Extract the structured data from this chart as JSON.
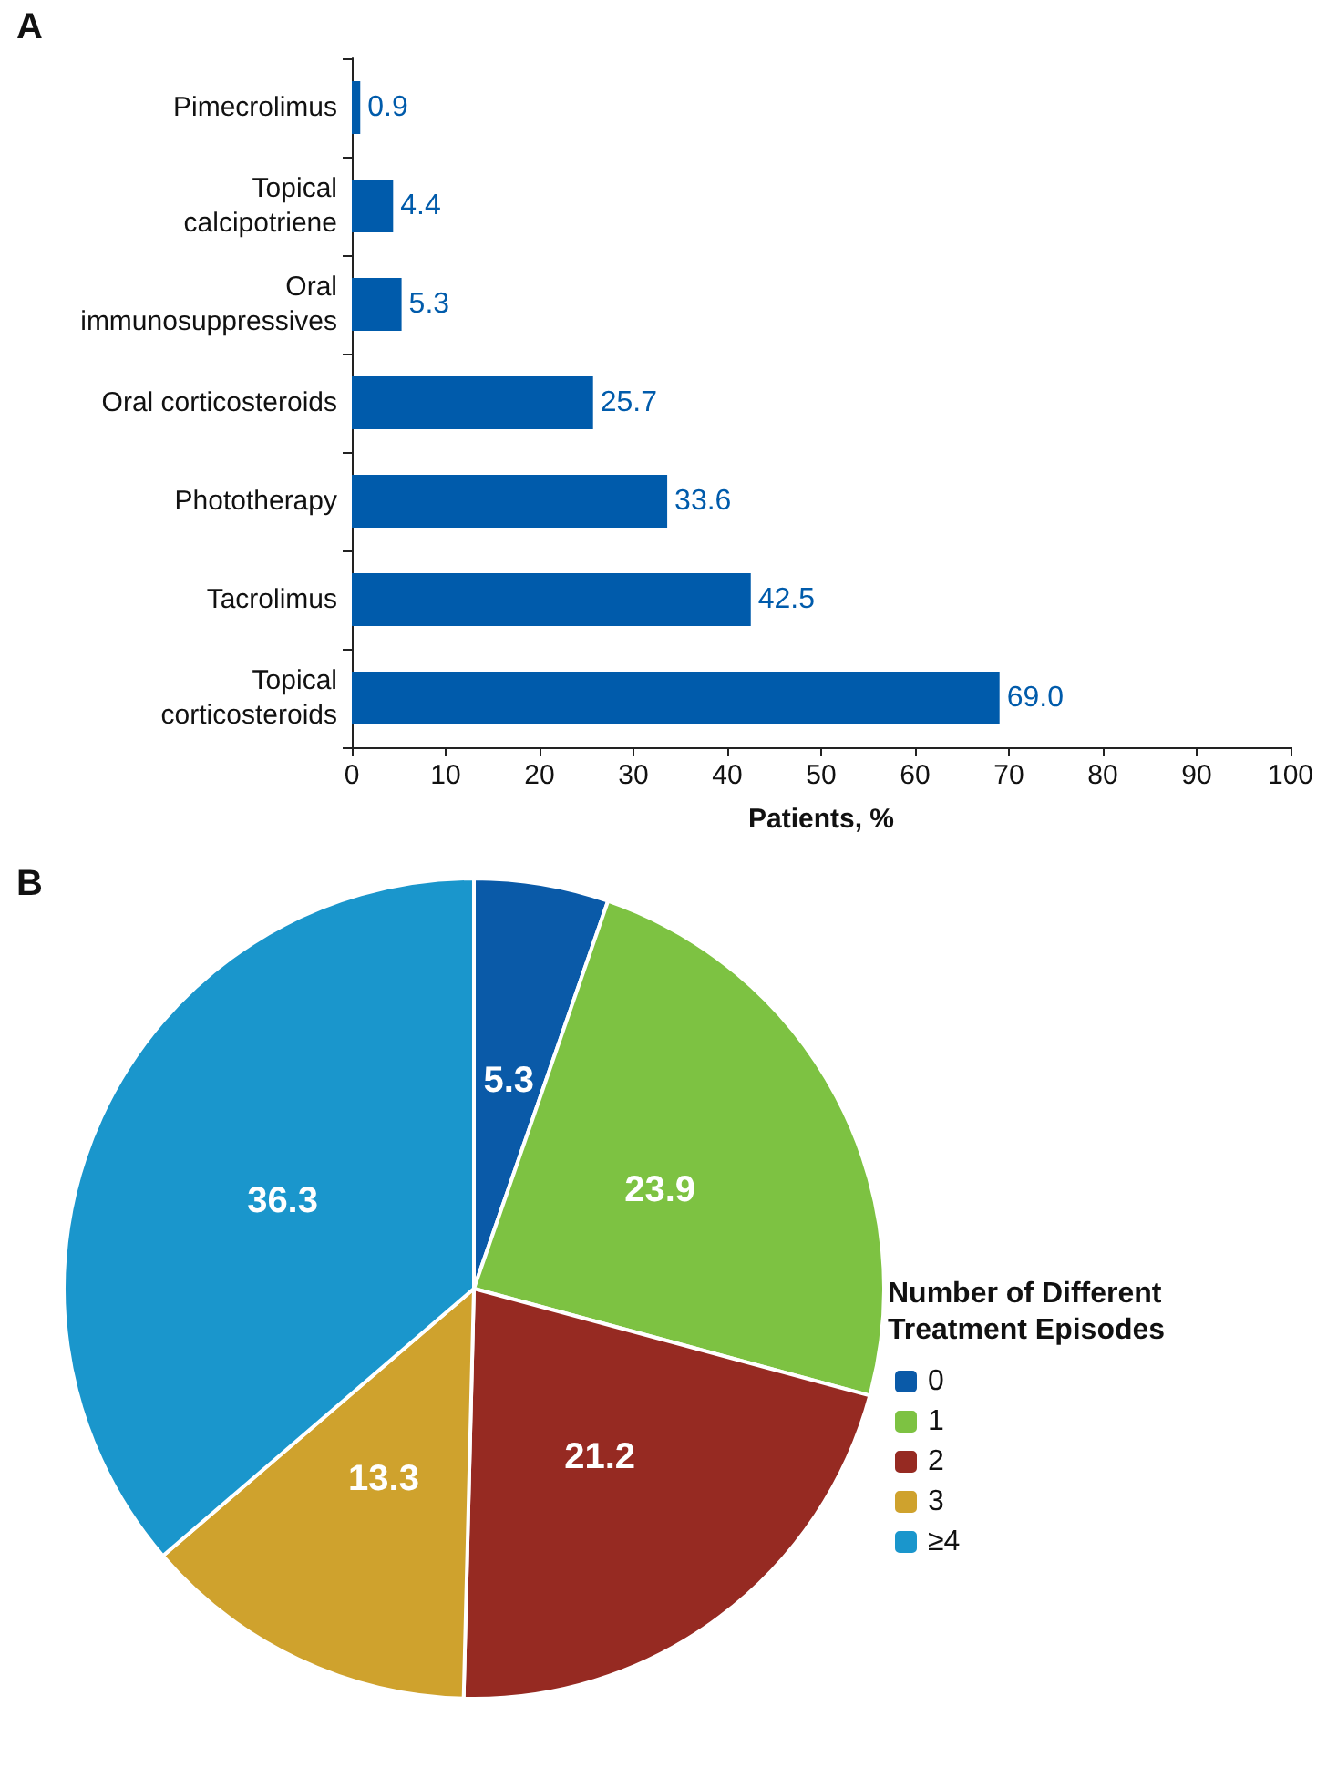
{
  "chart_data": [
    {
      "type": "bar",
      "title": "A",
      "orientation": "horizontal",
      "xlabel": "Patients, %",
      "categories": [
        "Pimecrolimus",
        "Topical\ncalcipotriene",
        "Oral\nimmunosuppressives",
        "Oral corticosteroids",
        "Phototherapy",
        "Tacrolimus",
        "Topical\ncorticosteroids"
      ],
      "values": [
        0.9,
        4.4,
        5.3,
        25.7,
        33.6,
        42.5,
        69.0
      ],
      "value_labels": [
        "0.9",
        "4.4",
        "5.3",
        "25.7",
        "33.6",
        "42.5",
        "69.0"
      ],
      "color": "#005bab",
      "xlim": [
        0,
        100
      ],
      "xticks": [
        0,
        10,
        20,
        30,
        40,
        50,
        60,
        70,
        80,
        90,
        100
      ],
      "grid": false,
      "legend": false
    },
    {
      "type": "pie",
      "title": "B",
      "legend_title": "Number of Different Treatment Episodes",
      "legend": "right",
      "categories": [
        "0",
        "1",
        "2",
        "3",
        "≥4"
      ],
      "values": [
        5.3,
        23.9,
        21.2,
        13.3,
        36.3
      ],
      "colors": [
        "#0a5aa8",
        "#7dc242",
        "#962a22",
        "#cfa22d",
        "#1a96cc"
      ],
      "data_labels": true
    }
  ]
}
